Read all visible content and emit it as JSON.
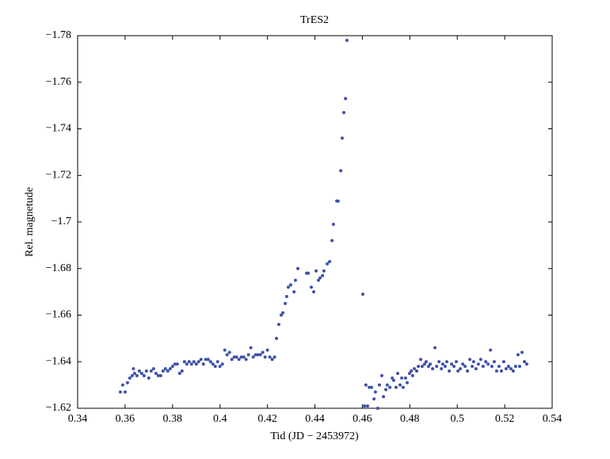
{
  "chart_data": {
    "type": "scatter",
    "title": "TrES2",
    "x_label": "Tid (JD − 2453972)",
    "y_label": "Rel. magnetude",
    "color": "#3f51a8",
    "xlim": [
      0.34,
      0.54
    ],
    "xticks": [
      0.34,
      0.36,
      0.38,
      0.4,
      0.42,
      0.44,
      0.46,
      0.48,
      0.5,
      0.52,
      0.54
    ],
    "ylim": [
      -1.62,
      -1.78
    ],
    "yticks": [
      {
        "value": -1.62,
        "label": "−1.62"
      },
      {
        "value": -1.64,
        "label": "−1.64"
      },
      {
        "value": -1.66,
        "label": "−1.66"
      },
      {
        "value": -1.68,
        "label": "−1.68"
      },
      {
        "value": -1.7,
        "label": "−1.7"
      },
      {
        "value": -1.72,
        "label": "−1.72"
      },
      {
        "value": -1.74,
        "label": "−1.74"
      },
      {
        "value": -1.76,
        "label": "−1.76"
      },
      {
        "value": -1.78,
        "label": "−1.78"
      }
    ],
    "x": [
      0.358,
      0.359,
      0.36,
      0.361,
      0.362,
      0.363,
      0.3635,
      0.364,
      0.365,
      0.366,
      0.367,
      0.368,
      0.369,
      0.37,
      0.371,
      0.372,
      0.373,
      0.374,
      0.375,
      0.376,
      0.377,
      0.378,
      0.379,
      0.38,
      0.381,
      0.382,
      0.383,
      0.384,
      0.385,
      0.386,
      0.387,
      0.388,
      0.389,
      0.39,
      0.391,
      0.392,
      0.393,
      0.394,
      0.395,
      0.396,
      0.397,
      0.398,
      0.399,
      0.4,
      0.401,
      0.402,
      0.403,
      0.404,
      0.405,
      0.406,
      0.407,
      0.408,
      0.409,
      0.41,
      0.411,
      0.412,
      0.413,
      0.414,
      0.415,
      0.416,
      0.417,
      0.418,
      0.419,
      0.42,
      0.421,
      0.422,
      0.423,
      0.4238,
      0.4248,
      0.4258,
      0.4265,
      0.4275,
      0.4281,
      0.4288,
      0.4298,
      0.4312,
      0.4318,
      0.4328,
      0.4365,
      0.4372,
      0.4385,
      0.4395,
      0.4405,
      0.4415,
      0.4422,
      0.4432,
      0.4438,
      0.4452,
      0.4462,
      0.4472,
      0.4478,
      0.4492,
      0.4498,
      0.4509,
      0.4515,
      0.4522,
      0.4529,
      0.4535,
      0.4602,
      0.4609,
      0.4615,
      0.4622,
      0.4629,
      0.4639,
      0.4649,
      0.4655,
      0.4665,
      0.4672,
      0.4682,
      0.4689,
      0.4699,
      0.4705,
      0.4716,
      0.4726,
      0.4732,
      0.4742,
      0.4749,
      0.4759,
      0.4766,
      0.4772,
      0.4782,
      0.4789,
      0.4799,
      0.4806,
      0.4812,
      0.4819,
      0.4829,
      0.4836,
      0.4846,
      0.4852,
      0.4862,
      0.4869,
      0.4879,
      0.4886,
      0.4896,
      0.4906,
      0.4913,
      0.4923,
      0.4933,
      0.4939,
      0.4949,
      0.4956,
      0.4966,
      0.4976,
      0.4986,
      0.4996,
      0.5003,
      0.5013,
      0.5023,
      0.5033,
      0.5043,
      0.5053,
      0.5063,
      0.5069,
      0.5079,
      0.5089,
      0.5099,
      0.5109,
      0.512,
      0.513,
      0.514,
      0.5146,
      0.5156,
      0.5166,
      0.5176,
      0.5186,
      0.5196,
      0.5206,
      0.5216,
      0.5226,
      0.5236,
      0.5246,
      0.5256,
      0.5263,
      0.5273,
      0.5283,
      0.5293
    ],
    "y": [
      -1.627,
      -1.63,
      -1.627,
      -1.631,
      -1.633,
      -1.634,
      -1.637,
      -1.635,
      -1.634,
      -1.636,
      -1.635,
      -1.634,
      -1.636,
      -1.633,
      -1.636,
      -1.637,
      -1.635,
      -1.634,
      -1.634,
      -1.636,
      -1.637,
      -1.636,
      -1.637,
      -1.638,
      -1.639,
      -1.639,
      -1.635,
      -1.636,
      -1.64,
      -1.639,
      -1.64,
      -1.639,
      -1.64,
      -1.639,
      -1.64,
      -1.641,
      -1.639,
      -1.641,
      -1.641,
      -1.64,
      -1.639,
      -1.638,
      -1.64,
      -1.638,
      -1.639,
      -1.645,
      -1.643,
      -1.644,
      -1.641,
      -1.642,
      -1.642,
      -1.641,
      -1.642,
      -1.642,
      -1.641,
      -1.643,
      -1.646,
      -1.642,
      -1.643,
      -1.643,
      -1.643,
      -1.644,
      -1.642,
      -1.645,
      -1.642,
      -1.641,
      -1.642,
      -1.65,
      -1.656,
      -1.66,
      -1.661,
      -1.665,
      -1.668,
      -1.672,
      -1.673,
      -1.67,
      -1.675,
      -1.68,
      -1.678,
      -1.678,
      -1.672,
      -1.67,
      -1.679,
      -1.675,
      -1.676,
      -1.677,
      -1.679,
      -1.682,
      -1.683,
      -1.692,
      -1.699,
      -1.709,
      -1.709,
      -1.722,
      -1.736,
      -1.747,
      -1.753,
      -1.778,
      -1.669,
      -1.621,
      -1.63,
      -1.621,
      -1.629,
      -1.629,
      -1.624,
      -1.627,
      -1.62,
      -1.63,
      -1.634,
      -1.625,
      -1.628,
      -1.63,
      -1.629,
      -1.633,
      -1.632,
      -1.629,
      -1.635,
      -1.63,
      -1.633,
      -1.629,
      -1.633,
      -1.631,
      -1.635,
      -1.636,
      -1.634,
      -1.637,
      -1.636,
      -1.638,
      -1.641,
      -1.638,
      -1.639,
      -1.64,
      -1.638,
      -1.639,
      -1.637,
      -1.646,
      -1.638,
      -1.64,
      -1.637,
      -1.639,
      -1.638,
      -1.64,
      -1.636,
      -1.639,
      -1.638,
      -1.64,
      -1.636,
      -1.637,
      -1.639,
      -1.638,
      -1.636,
      -1.641,
      -1.638,
      -1.64,
      -1.637,
      -1.639,
      -1.641,
      -1.638,
      -1.64,
      -1.639,
      -1.645,
      -1.638,
      -1.64,
      -1.636,
      -1.638,
      -1.636,
      -1.64,
      -1.637,
      -1.638,
      -1.637,
      -1.636,
      -1.638,
      -1.643,
      -1.638,
      -1.644,
      -1.64,
      -1.639
    ]
  }
}
